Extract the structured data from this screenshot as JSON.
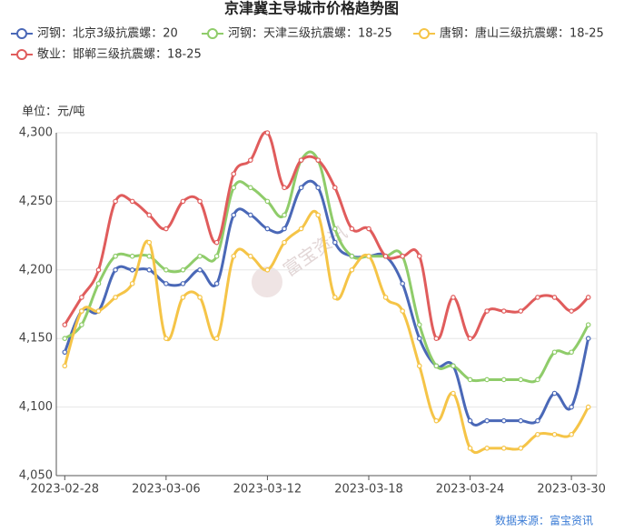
{
  "chart_data": {
    "type": "line",
    "title": "京津冀主导城市价格趋势图",
    "y_axis_label": "单位：元/吨",
    "watermark": "富宝资讯",
    "source": "数据来源：富宝资讯",
    "categories": [
      "2023-02-28",
      null,
      null,
      null,
      null,
      null,
      "2023-03-06",
      null,
      null,
      null,
      null,
      null,
      "2023-03-12",
      null,
      null,
      null,
      null,
      null,
      "2023-03-18",
      null,
      null,
      null,
      null,
      null,
      "2023-03-24",
      null,
      null,
      null,
      null,
      null,
      "2023-03-30",
      null
    ],
    "series": [
      {
        "name": "河钢：北京3级抗震螺：20",
        "color": "#4a68b7",
        "values": [
          4140,
          4170,
          4170,
          4200,
          4200,
          4200,
          4190,
          4190,
          4200,
          4190,
          4240,
          4240,
          4230,
          4230,
          4260,
          4260,
          4220,
          4210,
          4210,
          4210,
          4190,
          4150,
          4130,
          4130,
          4090,
          4090,
          4090,
          4090,
          4090,
          4110,
          4100,
          4150
        ]
      },
      {
        "name": "河钢：天津三级抗震螺：18-25",
        "color": "#8fcc6a",
        "values": [
          4150,
          4160,
          4190,
          4210,
          4210,
          4210,
          4200,
          4200,
          4210,
          4210,
          4260,
          4260,
          4250,
          4240,
          4280,
          4280,
          4230,
          4210,
          4210,
          4210,
          4210,
          4160,
          4130,
          4130,
          4120,
          4120,
          4120,
          4120,
          4120,
          4140,
          4140,
          4160
        ]
      },
      {
        "name": "唐钢：唐山三级抗震螺：18-25",
        "color": "#f5c447",
        "values": [
          4130,
          4170,
          4170,
          4180,
          4190,
          4220,
          4150,
          4180,
          4180,
          4150,
          4210,
          4210,
          4200,
          4220,
          4230,
          4240,
          4180,
          4200,
          4210,
          4180,
          4170,
          4130,
          4090,
          4110,
          4070,
          4070,
          4070,
          4070,
          4080,
          4080,
          4080,
          4100
        ]
      },
      {
        "name": "敬业：邯郸三级抗震螺：18-25",
        "color": "#e05c5c",
        "values": [
          4160,
          4180,
          4200,
          4250,
          4250,
          4240,
          4230,
          4250,
          4250,
          4220,
          4270,
          4280,
          4300,
          4260,
          4280,
          4280,
          4260,
          4230,
          4230,
          4210,
          4210,
          4210,
          4150,
          4180,
          4150,
          4170,
          4170,
          4170,
          4180,
          4180,
          4170,
          4180
        ]
      }
    ],
    "ylim": [
      4050,
      4300
    ],
    "yticks": [
      {
        "value": 4050,
        "label": "4,050"
      },
      {
        "value": 4100,
        "label": "4,100"
      },
      {
        "value": 4150,
        "label": "4,150"
      },
      {
        "value": 4200,
        "label": "4,200"
      },
      {
        "value": 4250,
        "label": "4,250"
      },
      {
        "value": 4300,
        "label": "4,300"
      }
    ],
    "grid": true
  }
}
